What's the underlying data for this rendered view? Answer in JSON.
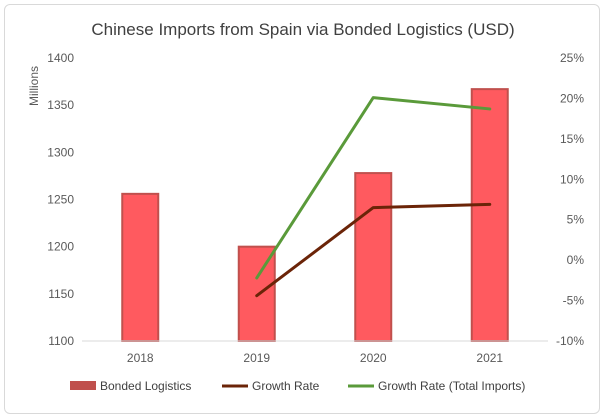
{
  "chart_data": {
    "type": "bar",
    "title": "Chinese Imports from Spain via Bonded Logistics (USD)",
    "categories": [
      "2018",
      "2019",
      "2020",
      "2021"
    ],
    "ylabel": "Millions",
    "ylim": [
      1100,
      1400
    ],
    "y_ticks": [
      "1100",
      "1150",
      "1200",
      "1250",
      "1300",
      "1350",
      "1400"
    ],
    "y2lim": [
      -10,
      25
    ],
    "y2_ticks": [
      "-10%",
      "-5%",
      "0%",
      "5%",
      "10%",
      "15%",
      "20%",
      "25%"
    ],
    "grid": false,
    "legend_position": "bottom",
    "series": [
      {
        "name": "Bonded Logistics",
        "type": "bar",
        "axis": "left",
        "values": [
          1256,
          1200,
          1278,
          1367
        ],
        "color": "#ff5a5f",
        "edge_color": "#c0504d"
      },
      {
        "name": "Growth Rate",
        "type": "line",
        "axis": "right",
        "values": [
          null,
          -4.4,
          6.5,
          6.9
        ],
        "color": "#6b2408"
      },
      {
        "name": "Growth Rate (Total Imports)",
        "type": "line",
        "axis": "right",
        "values": [
          null,
          -2.2,
          20.1,
          18.7
        ],
        "color": "#5a9a3a"
      }
    ]
  }
}
